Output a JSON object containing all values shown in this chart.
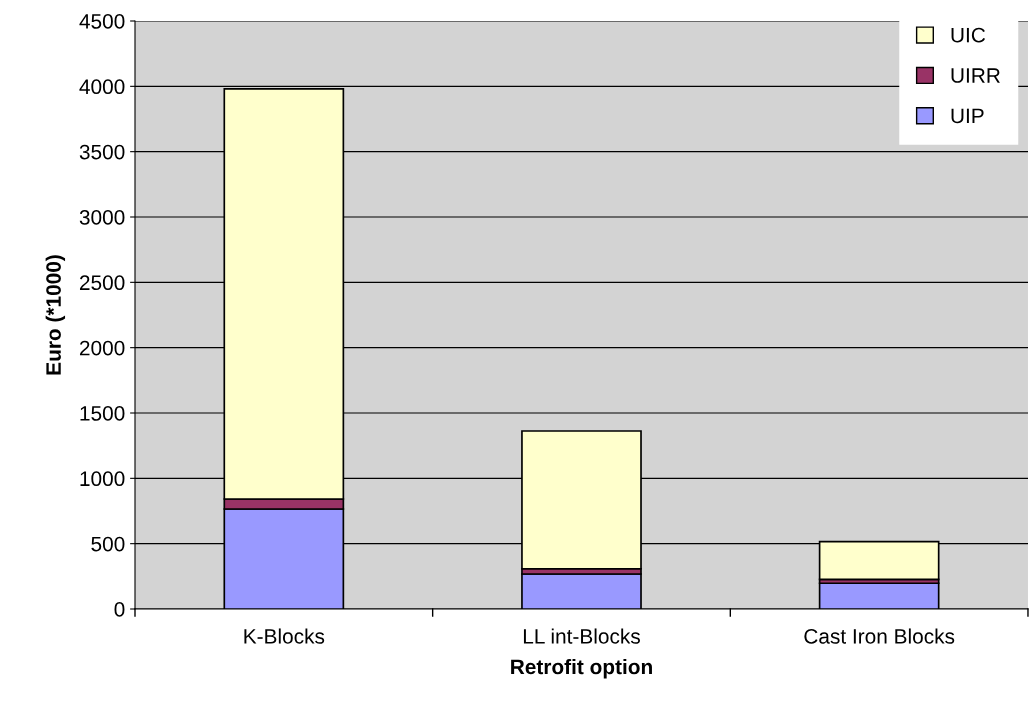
{
  "chart_data": {
    "type": "bar",
    "stacked": true,
    "xlabel": "Retrofit option",
    "ylabel": "Euro (*1000)",
    "categories": [
      "K-Blocks",
      "LL int-Blocks",
      "Cast Iron Blocks"
    ],
    "series": [
      {
        "name": "UIP",
        "color": "#9999ff",
        "values": [
          765,
          268,
          197
        ]
      },
      {
        "name": "UIRR",
        "color": "#993366",
        "values": [
          77,
          40,
          30
        ]
      },
      {
        "name": "UIC",
        "color": "#ffffcc",
        "values": [
          3138,
          1054,
          288
        ]
      }
    ],
    "ylim": [
      0,
      4500
    ],
    "yticks": [
      0,
      500,
      1000,
      1500,
      2000,
      2500,
      3000,
      3500,
      4000,
      4500
    ],
    "grid": "y",
    "legend": "top right"
  }
}
